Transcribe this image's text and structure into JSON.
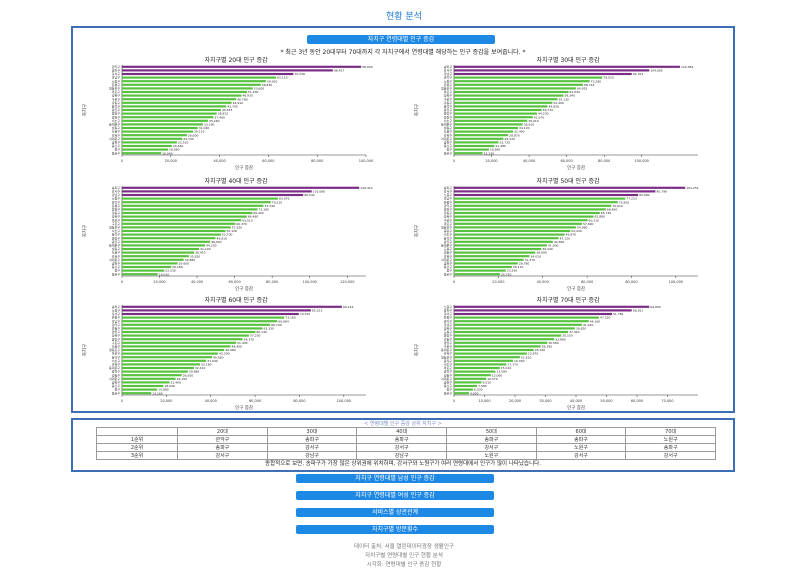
{
  "page_title": "현황 분석",
  "buttons": {
    "top": "자치구 연령대별 인구 증감",
    "b1": "자치구 연령대별 남성 인구 증감",
    "b2": "자치구 연령대별 여성 인구 증감",
    "b3": "서비스별 상관관계",
    "b4": "자치구별 방문횟수"
  },
  "note": "* 최근 3년 동안 20대부터 70대까지 각 자치구에서 연령대별 해당하는 인구 증감을 보여줍니다. *",
  "summary_caption": "< 연령대별 인구 증감 상위 자치구 >",
  "summary_table": {
    "headers": [
      "",
      "20대",
      "30대",
      "40대",
      "50대",
      "60대",
      "70대"
    ],
    "rows": [
      [
        "1순위",
        "관악구",
        "송파구",
        "송파구",
        "송파구",
        "송파구",
        "노원구"
      ],
      [
        "2순위",
        "송파구",
        "강서구",
        "강서구",
        "강서구",
        "노원구",
        "송파구"
      ],
      [
        "3순위",
        "강서구",
        "강남구",
        "강남구",
        "노원구",
        "강서구",
        "강서구"
      ]
    ]
  },
  "summary_text": "종합적으로 보면, 송파구가 가장 많은 상위권에 위치하며, 강서구와 노원구가 여러 연령대에서 인구가 많이 나타났습니다.",
  "footer_lines": [
    "데이터 출처: 서울 열린데이터광장 생활인구",
    "자치구별 연령대별 인구 현황 분석",
    "시각화: 연령대별 인구 증감 현황"
  ],
  "chart_data": [
    {
      "type": "bar",
      "orientation": "horizontal",
      "title": "자치구별 20대 인구 증감",
      "xlabel": "인구 증감",
      "ylabel": "자치구",
      "xlim": [
        0,
        100000
      ],
      "xticks": [
        0,
        20000,
        40000,
        60000,
        80000,
        100000
      ],
      "categories": [
        "관악구",
        "송파구",
        "강서구",
        "강남구",
        "노원구",
        "은평구",
        "영등포구",
        "마포구",
        "성북구",
        "구로구",
        "강동구",
        "동작구",
        "광진구",
        "중랑구",
        "양천구",
        "서초구",
        "동대문구",
        "성동구",
        "도봉구",
        "강북구",
        "서대문구",
        "금천구",
        "용산구",
        "중구",
        "종로구"
      ],
      "values": [
        98000,
        86427,
        70238,
        63120,
        59001,
        56830,
        53600,
        51200,
        48935,
        46780,
        44910,
        42700,
        40525,
        38812,
        37460,
        35260,
        33180,
        31040,
        29110,
        26600,
        24700,
        22510,
        20420,
        18860,
        16040
      ]
    },
    {
      "type": "bar",
      "orientation": "horizontal",
      "title": "자치구별 30대 인구 증감",
      "xlabel": "인구 증감",
      "ylabel": "자치구",
      "xlim": [
        0,
        130000
      ],
      "xticks": [
        0,
        20000,
        40000,
        60000,
        80000,
        100000
      ],
      "categories": [
        "송파구",
        "강서구",
        "강남구",
        "관악구",
        "노원구",
        "은평구",
        "영등포구",
        "마포구",
        "성북구",
        "구로구",
        "강동구",
        "동작구",
        "광진구",
        "중랑구",
        "양천구",
        "서초구",
        "동대문구",
        "성동구",
        "도봉구",
        "강북구",
        "서대문구",
        "금천구",
        "용산구",
        "중구",
        "종로구"
      ],
      "values": [
        120384,
        104065,
        94702,
        79010,
        72280,
        68714,
        64925,
        61020,
        58340,
        55130,
        52400,
        49826,
        46710,
        44230,
        41970,
        39010,
        36610,
        34120,
        31490,
        28870,
        26330,
        23720,
        21480,
        18560,
        15230
      ]
    },
    {
      "type": "bar",
      "orientation": "horizontal",
      "title": "자치구별 40대 인구 증감",
      "xlabel": "인구 증감",
      "ylabel": "자치구",
      "xlim": [
        0,
        130000
      ],
      "xticks": [
        0,
        20000,
        40000,
        60000,
        80000,
        100000,
        120000
      ],
      "categories": [
        "송파구",
        "강서구",
        "강남구",
        "노원구",
        "관악구",
        "은평구",
        "양천구",
        "강동구",
        "성북구",
        "마포구",
        "구로구",
        "영등포구",
        "서초구",
        "동작구",
        "중랑구",
        "광진구",
        "동대문구",
        "성동구",
        "도봉구",
        "강북구",
        "서대문구",
        "금천구",
        "용산구",
        "중구",
        "종로구"
      ],
      "values": [
        126414,
        101066,
        96542,
        83076,
        79210,
        75340,
        72180,
        69400,
        66480,
        63510,
        60370,
        57920,
        55126,
        52700,
        49810,
        46920,
        44230,
        41100,
        38410,
        35620,
        32880,
        29600,
        26180,
        22530,
        19010
      ]
    },
    {
      "type": "bar",
      "orientation": "horizontal",
      "title": "자치구별 50대 인구 증감",
      "xlabel": "인구 증감",
      "ylabel": "자치구",
      "xlim": [
        0,
        110000
      ],
      "xticks": [
        0,
        20000,
        40000,
        60000,
        80000,
        100000
      ],
      "categories": [
        "송파구",
        "강서구",
        "노원구",
        "강남구",
        "은평구",
        "관악구",
        "양천구",
        "강동구",
        "성북구",
        "구로구",
        "마포구",
        "영등포구",
        "중랑구",
        "서초구",
        "동작구",
        "광진구",
        "동대문구",
        "도봉구",
        "성동구",
        "강북구",
        "서대문구",
        "금천구",
        "용산구",
        "중구",
        "종로구"
      ],
      "values": [
        104251,
        90796,
        82990,
        77223,
        73820,
        70910,
        68450,
        65730,
        62880,
        60210,
        57690,
        54980,
        52430,
        49870,
        47120,
        44560,
        41900,
        39340,
        36690,
        34010,
        31370,
        28780,
        26110,
        23350,
        20720
      ]
    },
    {
      "type": "bar",
      "orientation": "horizontal",
      "title": "자치구별 60대 인구 증감",
      "xlabel": "인구 증감",
      "ylabel": "자치구",
      "xlim": [
        0,
        110000
      ],
      "xticks": [
        0,
        20000,
        40000,
        60000,
        80000,
        100000
      ],
      "categories": [
        "송파구",
        "노원구",
        "강서구",
        "은평구",
        "강남구",
        "관악구",
        "강동구",
        "양천구",
        "성북구",
        "중랑구",
        "구로구",
        "도봉구",
        "영등포구",
        "마포구",
        "동작구",
        "서초구",
        "강북구",
        "동대문구",
        "광진구",
        "성동구",
        "서대문구",
        "금천구",
        "용산구",
        "중구",
        "종로구"
      ],
      "values": [
        99124,
        85153,
        79702,
        73160,
        69984,
        66790,
        63330,
        60140,
        57230,
        54370,
        51430,
        48900,
        46080,
        43290,
        40580,
        37940,
        35180,
        32410,
        29680,
        26920,
        24150,
        21400,
        18640,
        15860,
        13160
      ]
    },
    {
      "type": "bar",
      "orientation": "horizontal",
      "title": "자치구별 70대 인구 증감",
      "xlabel": "인구 증감",
      "ylabel": "자치구",
      "xlim": [
        0,
        80000
      ],
      "xticks": [
        0,
        10000,
        20000,
        30000,
        40000,
        50000,
        60000,
        70000
      ],
      "categories": [
        "노원구",
        "송파구",
        "강서구",
        "은평구",
        "관악구",
        "강남구",
        "성북구",
        "도봉구",
        "중랑구",
        "강동구",
        "양천구",
        "구로구",
        "동대문구",
        "강북구",
        "영등포구",
        "동작구",
        "서초구",
        "마포구",
        "광진구",
        "성동구",
        "서대문구",
        "금천구",
        "용산구",
        "중구",
        "종로구"
      ],
      "values": [
        64000,
        58261,
        51784,
        47520,
        44160,
        41930,
        39620,
        37410,
        35150,
        32880,
        30560,
        28390,
        26140,
        23870,
        21610,
        19350,
        17170,
        15010,
        13580,
        12060,
        10570,
        9010,
        7580,
        6200,
        4900
      ]
    }
  ],
  "colors": {
    "accent": "#1e88e5",
    "frame": "#3c6fb7",
    "bar_top": "#7b2d86",
    "bar": "#57c23d"
  }
}
